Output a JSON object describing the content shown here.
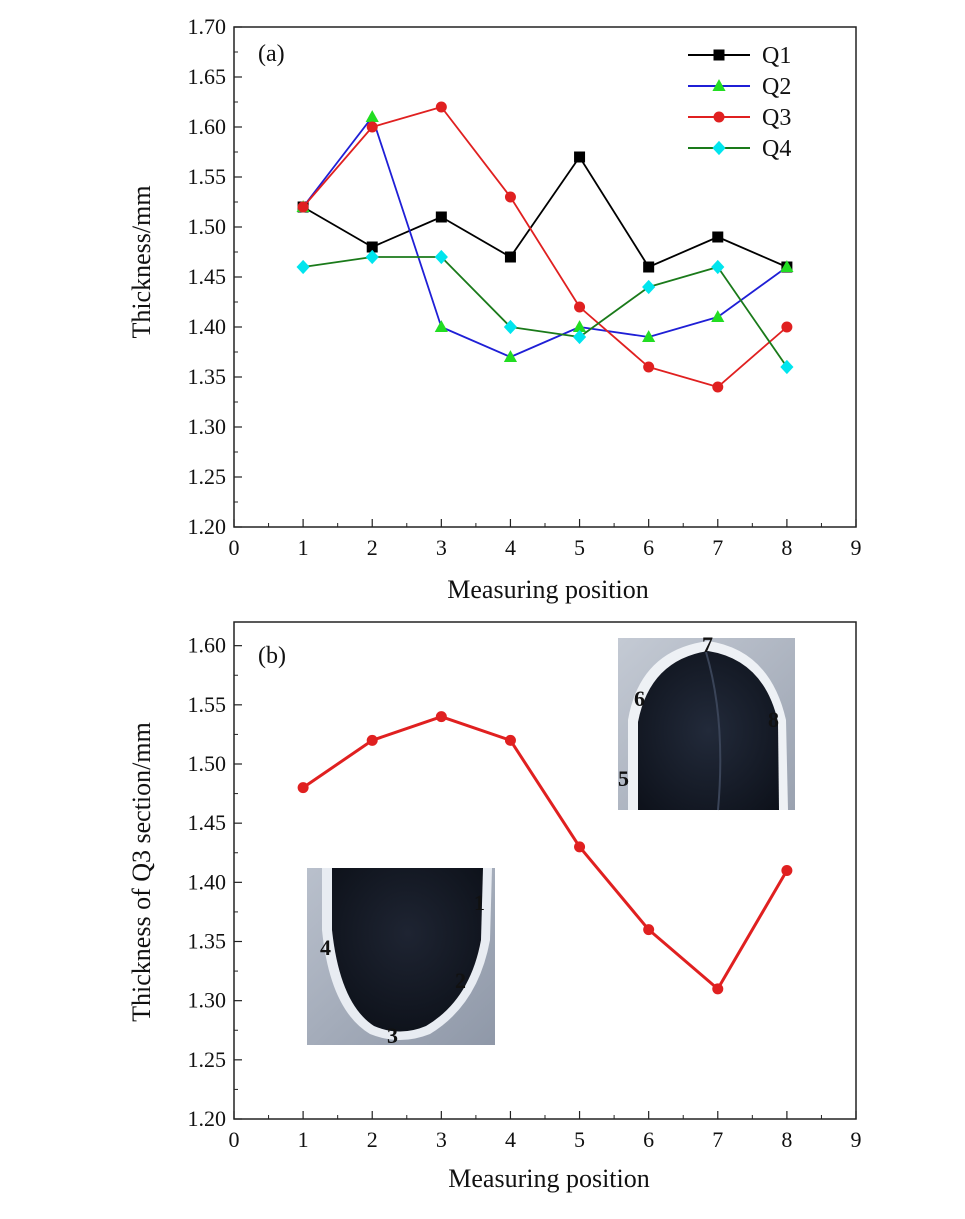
{
  "chart_data": [
    {
      "type": "line",
      "panel_label": "(a)",
      "xlabel": "Measuring position",
      "ylabel": "Thickness/mm",
      "xlim": [
        0,
        9
      ],
      "ylim": [
        1.2,
        1.7
      ],
      "x_ticks": [
        "0",
        "1",
        "2",
        "3",
        "4",
        "5",
        "6",
        "7",
        "8",
        "9"
      ],
      "y_ticks": [
        "1.20",
        "1.25",
        "1.30",
        "1.35",
        "1.40",
        "1.45",
        "1.50",
        "1.55",
        "1.60",
        "1.65",
        "1.70"
      ],
      "legend_position": "top-right",
      "grid": false,
      "x": [
        1,
        2,
        3,
        4,
        5,
        6,
        7,
        8
      ],
      "series": [
        {
          "name": "Q1",
          "line_color": "#000000",
          "marker_color": "#000000",
          "marker": "square",
          "values": [
            1.52,
            1.48,
            1.51,
            1.47,
            1.57,
            1.46,
            1.49,
            1.46
          ]
        },
        {
          "name": "Q2",
          "line_color": "#1f1fd6",
          "marker_color": "#22dd22",
          "marker": "triangle",
          "values": [
            1.52,
            1.61,
            1.4,
            1.37,
            1.4,
            1.39,
            1.41,
            1.46
          ]
        },
        {
          "name": "Q3",
          "line_color": "#e02020",
          "marker_color": "#e02020",
          "marker": "circle",
          "values": [
            1.52,
            1.6,
            1.62,
            1.53,
            1.42,
            1.36,
            1.34,
            1.4
          ]
        },
        {
          "name": "Q4",
          "line_color": "#1a7a1a",
          "marker_color": "#00e5ee",
          "marker": "diamond",
          "values": [
            1.46,
            1.47,
            1.47,
            1.4,
            1.39,
            1.44,
            1.46,
            1.36
          ]
        }
      ]
    },
    {
      "type": "line",
      "panel_label": "(b)",
      "xlabel": "Measuring position",
      "ylabel": "Thickness of Q3 section/mm",
      "xlim": [
        0,
        9
      ],
      "ylim": [
        1.2,
        1.62
      ],
      "x_ticks": [
        "0",
        "1",
        "2",
        "3",
        "4",
        "5",
        "6",
        "7",
        "8",
        "9"
      ],
      "y_ticks": [
        "1.20",
        "1.25",
        "1.30",
        "1.35",
        "1.40",
        "1.45",
        "1.50",
        "1.55",
        "1.60"
      ],
      "grid": false,
      "x": [
        1,
        2,
        3,
        4,
        5,
        6,
        7,
        8
      ],
      "series": [
        {
          "line_color": "#e02020",
          "marker_color": "#e02020",
          "marker": "circle",
          "values": [
            1.48,
            1.52,
            1.54,
            1.52,
            1.43,
            1.36,
            1.31,
            1.41
          ]
        }
      ],
      "inset_photos": [
        {
          "position_labels": [
            "1",
            "2",
            "3",
            "4"
          ]
        },
        {
          "position_labels": [
            "5",
            "6",
            "7",
            "8"
          ]
        }
      ]
    }
  ]
}
